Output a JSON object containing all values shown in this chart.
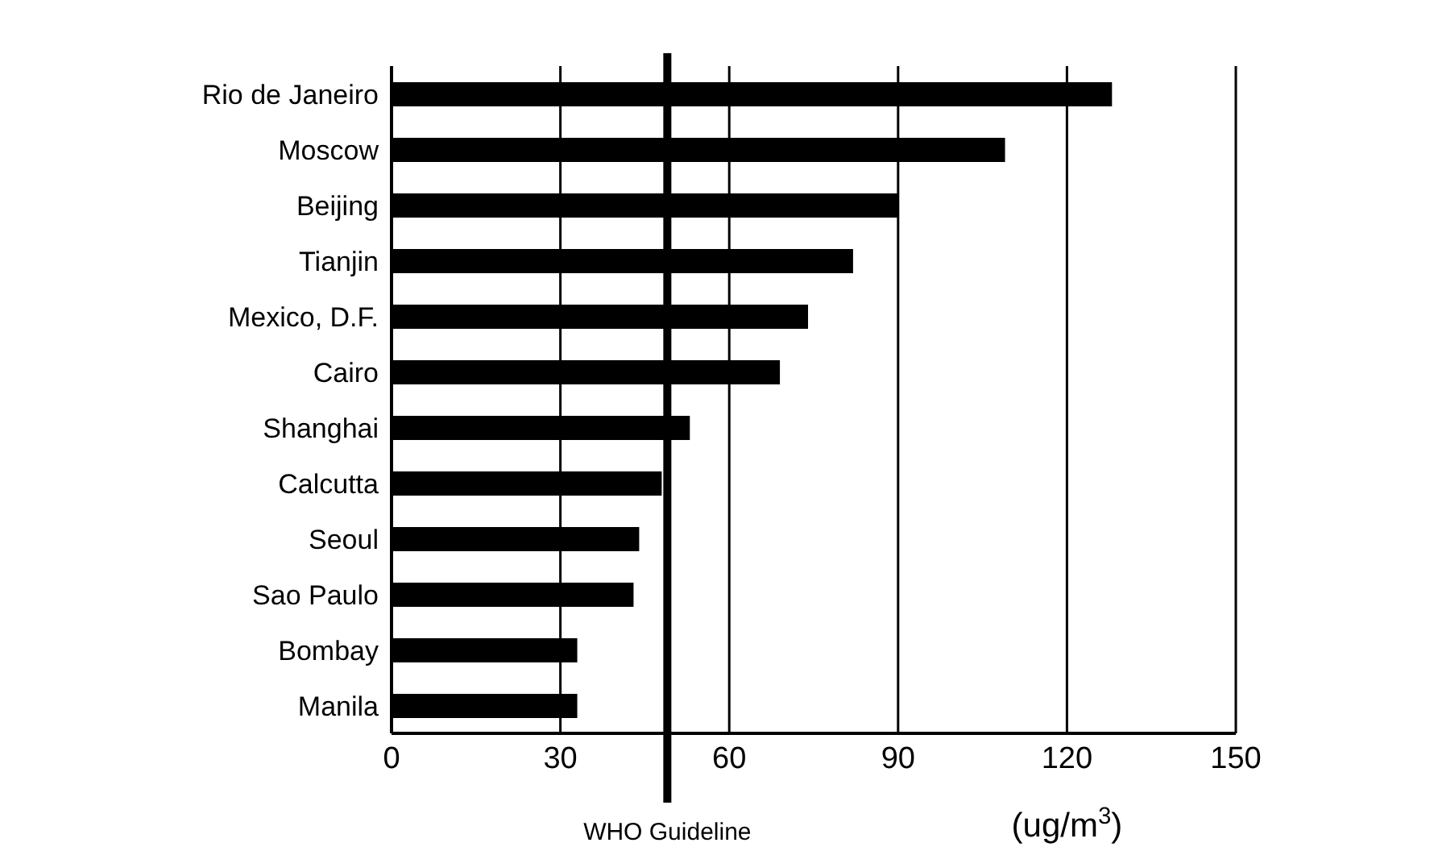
{
  "chart_data": {
    "type": "bar",
    "orientation": "horizontal",
    "xlabel": "(ug/m$^{3}$)",
    "categories": [
      "Rio de Janeiro",
      "Moscow",
      "Beijing",
      "Tianjin",
      "Mexico, D.F.",
      "Cairo",
      "Shanghai",
      "Calcutta",
      "Seoul",
      "Sao Paulo",
      "Bombay",
      "Manila"
    ],
    "values": [
      128,
      109,
      90,
      82,
      74,
      69,
      53,
      48,
      44,
      43,
      33,
      33
    ],
    "color": "#000000",
    "xlim": [
      0,
      150
    ],
    "xticks": [
      0,
      30,
      60,
      90,
      120,
      150
    ],
    "grid": "x",
    "ref_lines": [
      {
        "axis": "x",
        "value": 49,
        "label": "WHO Guideline",
        "color": "#000000"
      }
    ]
  }
}
